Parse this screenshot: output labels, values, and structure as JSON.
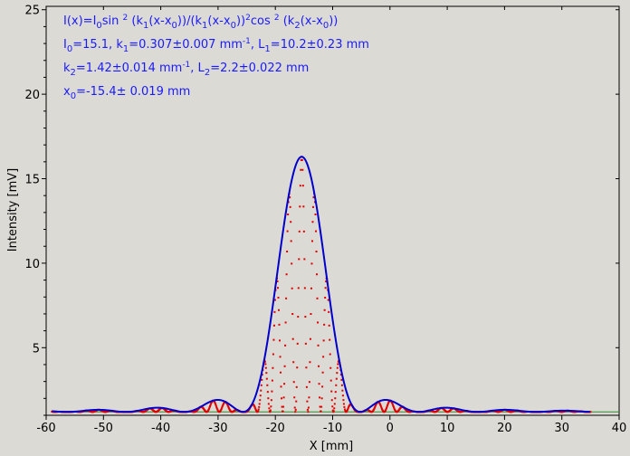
{
  "chart_data": {
    "type": "scatter",
    "xlabel": "X [mm]",
    "ylabel": "Intensity [mV]",
    "xlim": [
      -60,
      40
    ],
    "ylim": [
      1.0,
      25.2
    ],
    "x_ticks": [
      -60,
      -50,
      -40,
      -30,
      -20,
      -10,
      0,
      10,
      20,
      30,
      40
    ],
    "y_ticks": [
      5,
      10,
      15,
      20,
      25
    ],
    "grid": false,
    "colors": {
      "measured": "#e00000",
      "fit": "#0000cc",
      "baseline": "#2e8b2e",
      "annotation": "#1a1aff"
    },
    "fit_params": {
      "I0": 15.1,
      "k1": 0.307,
      "L1": 10.2,
      "k2": 1.42,
      "L2": 2.2,
      "x0": -15.4,
      "baseline": 1.2
    },
    "fit_range": [
      -59,
      35
    ],
    "annotation": {
      "formula": {
        "p1": "I(x)=I",
        "s1": "0",
        "p2": "sin ",
        "e1": "2",
        "p3": " (k",
        "s2": "1",
        "p4": "(x-x",
        "s3": "0",
        "p5": "))/(k",
        "s4": "1",
        "p6": "(x-x",
        "s5": "0",
        "p7": "))",
        "e2": "2",
        "p8": "cos ",
        "e3": "2",
        "p9": " (k",
        "s6": "2",
        "p10": "(x-x",
        "s7": "0",
        "p11": "))"
      },
      "line2": {
        "a": "I",
        "a_sub": "0",
        "b": "=15.1,  k",
        "b_sub": "1",
        "c": "=0.307±0.007 mm",
        "c_sup": "-1",
        "d": ",   L",
        "d_sub": "1",
        "e": "=10.2±0.23 mm"
      },
      "line3": {
        "a": "k",
        "a_sub": "2",
        "b": "=1.42±0.014 mm",
        "b_sup": "-1",
        "c": ",   L",
        "c_sub": "2",
        "d": "=2.2±0.022 mm"
      },
      "line4": {
        "a": "x",
        "a_sub": "0",
        "b": "=-15.4±   0.019 mm"
      }
    }
  }
}
